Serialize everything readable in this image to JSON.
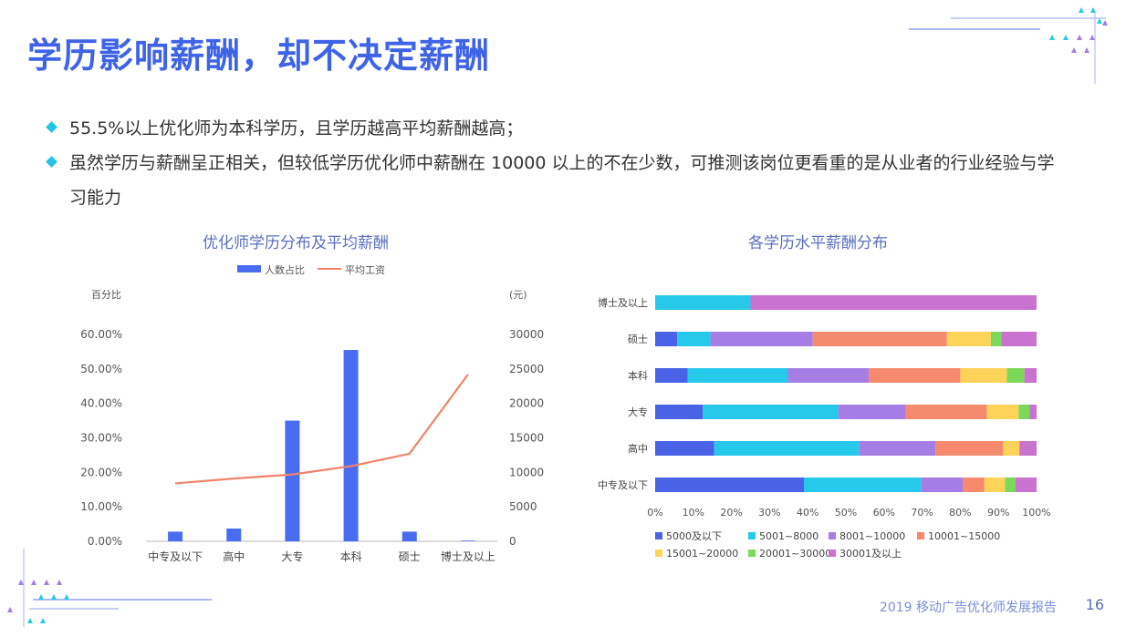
{
  "title": "学历影响薪酬，却不决定薪酬",
  "bullets": [
    "55.5%以上优化师为本科学历，且学历越高平均薪酬越高；",
    "虽然学历与薪酬呈正相关，但较低学历优化师中薪酬在 10000 以上的不在少数，可推测该岗位更看重的是从业者的行业经验与学习能力"
  ],
  "footer": {
    "report": "2019 移动广告优化师发展报告",
    "page": "16"
  },
  "colors": {
    "accent": "#3f63e6",
    "bullet": "#22c4e4",
    "bar": "#4a6cf0",
    "line": "#f0836c"
  },
  "chart_data": [
    {
      "type": "bar+line",
      "title": "优化师学历分布及平均薪酬",
      "legend": [
        "人数占比",
        "平均工资"
      ],
      "left_axis_label": "百分比",
      "right_axis_label": "(元)",
      "categories": [
        "中专及以下",
        "高中",
        "大专",
        "本科",
        "硕士",
        "博士及以上"
      ],
      "series": [
        {
          "name": "人数占比",
          "type": "bar",
          "values": [
            2.8,
            3.7,
            35.0,
            55.5,
            2.8,
            0.2
          ]
        },
        {
          "name": "平均工资",
          "type": "line",
          "values": [
            8400,
            9100,
            9700,
            10900,
            12700,
            24200
          ]
        }
      ],
      "y_left_ticks": [
        "0.00%",
        "10.00%",
        "20.00%",
        "30.00%",
        "40.00%",
        "50.00%",
        "60.00%"
      ],
      "y_right_ticks": [
        "0",
        "5000",
        "10000",
        "15000",
        "20000",
        "25000",
        "30000"
      ],
      "ylim_left": [
        0,
        60
      ],
      "ylim_right": [
        0,
        30000
      ]
    },
    {
      "type": "stacked-bar-horizontal-100",
      "title": "各学历水平薪酬分布",
      "categories": [
        "博士及以上",
        "硕士",
        "本科",
        "大专",
        "高中",
        "中专及以下"
      ],
      "series": [
        {
          "name": "5000及以下",
          "color": "#4a63e6",
          "values": [
            0,
            5.8,
            8.5,
            12.5,
            15.5,
            39.0
          ]
        },
        {
          "name": "5001~8000",
          "color": "#27c9ea",
          "values": [
            25.0,
            8.7,
            26.3,
            35.5,
            38.0,
            30.7
          ]
        },
        {
          "name": "8001~10000",
          "color": "#a57de4",
          "values": [
            0,
            26.8,
            21.2,
            17.7,
            20.0,
            11.0
          ]
        },
        {
          "name": "10001~15000",
          "color": "#f58a6e",
          "values": [
            0,
            35.2,
            24.0,
            21.3,
            17.7,
            5.6
          ]
        },
        {
          "name": "15001~20000",
          "color": "#fdd35a",
          "values": [
            0,
            11.5,
            12.2,
            8.3,
            4.3,
            5.4
          ]
        },
        {
          "name": "20001~30000",
          "color": "#7cd85b",
          "values": [
            0,
            2.8,
            4.6,
            2.9,
            0,
            2.8
          ]
        },
        {
          "name": "30001及以上",
          "color": "#c972cf",
          "values": [
            75.0,
            9.2,
            3.2,
            1.8,
            4.5,
            5.5
          ]
        }
      ],
      "x_ticks": [
        "0%",
        "10%",
        "20%",
        "30%",
        "40%",
        "50%",
        "60%",
        "70%",
        "80%",
        "90%",
        "100%"
      ],
      "xlim": [
        0,
        100
      ]
    }
  ]
}
